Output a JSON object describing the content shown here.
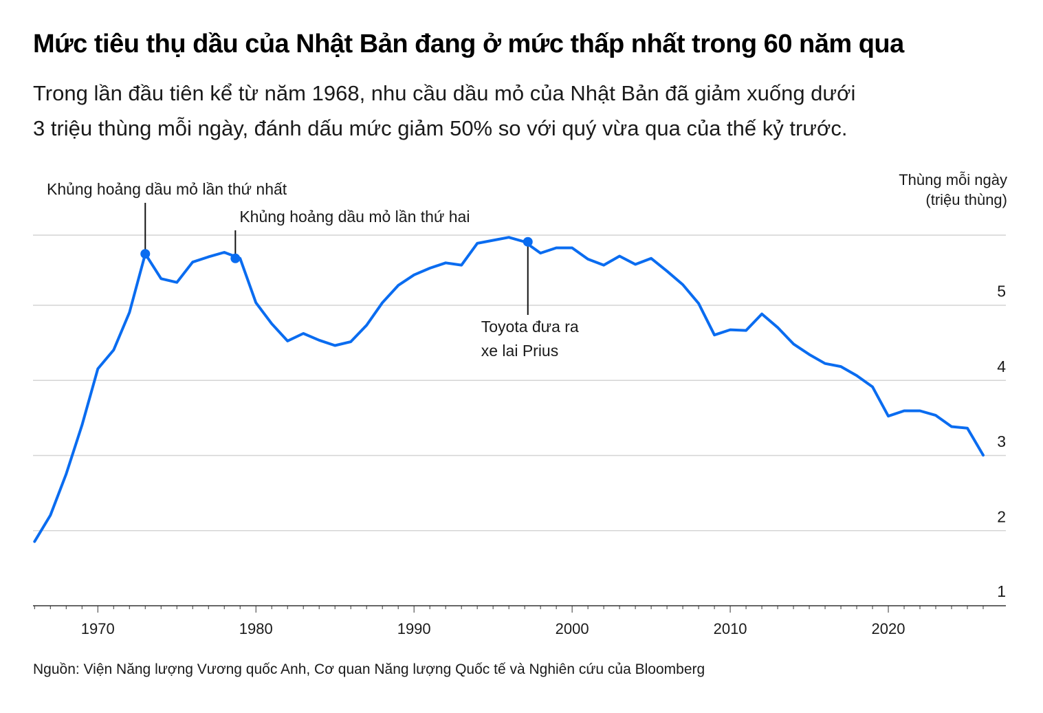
{
  "header": {
    "title": "Mức tiêu thụ dầu của Nhật Bản đang ở mức thấp nhất trong 60 năm qua",
    "subtitle_lines": [
      "Trong lần đầu tiên kể từ năm 1968, nhu cầu dầu mỏ của Nhật Bản đã giảm xuống dưới",
      "3 triệu thùng mỗi ngày, đánh dấu mức giảm 50% so với quý vừa qua của thế kỷ trước."
    ]
  },
  "source": "Nguồn: Viện Năng lượng Vương quốc Anh, Cơ quan Năng lượng Quốc tế và Nghiên cứu của Bloomberg",
  "colors": {
    "line": "#0a6cf0",
    "grid": "#d4d4d4",
    "axis": "#333333",
    "text": "#1a1a1a"
  },
  "chart_data": {
    "type": "line",
    "title": "Mức tiêu thụ dầu của Nhật Bản đang ở mức thấp nhất trong 60 năm qua",
    "ylabel_lines": [
      "Thùng mỗi ngày",
      "(triệu thùng)"
    ],
    "xlabel": "",
    "y_ticks": [
      1,
      2,
      3,
      4,
      5
    ],
    "x_ticks": [
      1970,
      1980,
      1990,
      2000,
      2010,
      2020
    ],
    "xlim": [
      1965.9,
      2027.5
    ],
    "ylim": [
      1,
      5.95
    ],
    "grid": true,
    "y_axis_position": "right",
    "series": [
      {
        "name": "",
        "x": [
          1966,
          1967,
          1968,
          1969,
          1970,
          1971,
          1972,
          1973,
          1974,
          1975,
          1976,
          1977,
          1978,
          1979,
          1980,
          1981,
          1982,
          1983,
          1984,
          1985,
          1986,
          1987,
          1988,
          1989,
          1990,
          1991,
          1992,
          1993,
          1994,
          1995,
          1996,
          1997,
          1998,
          1999,
          2000,
          2001,
          2002,
          2003,
          2004,
          2005,
          2006,
          2007,
          2008,
          2009,
          2010,
          2011,
          2012,
          2013,
          2014,
          2015,
          2016,
          2017,
          2018,
          2019,
          2020,
          2021,
          2022,
          2023,
          2024,
          2025,
          2026
        ],
        "values": [
          1.85,
          2.2,
          2.75,
          3.4,
          4.15,
          4.4,
          4.9,
          5.68,
          5.35,
          5.3,
          5.57,
          5.64,
          5.7,
          5.62,
          5.03,
          4.75,
          4.52,
          4.62,
          4.53,
          4.46,
          4.51,
          4.73,
          5.03,
          5.26,
          5.4,
          5.49,
          5.56,
          5.53,
          5.82,
          5.86,
          5.9,
          5.84,
          5.69,
          5.76,
          5.76,
          5.61,
          5.53,
          5.65,
          5.54,
          5.62,
          5.45,
          5.27,
          5.02,
          4.6,
          4.67,
          4.66,
          4.88,
          4.7,
          4.48,
          4.34,
          4.22,
          4.18,
          4.06,
          3.91,
          3.52,
          3.59,
          3.59,
          3.53,
          3.38,
          3.36,
          3.0
        ]
      }
    ],
    "annotations": [
      {
        "x": 1973,
        "y": 5.68,
        "lines": [
          "Khủng hoảng dầu mỏ lần thứ nhất"
        ],
        "position": "above"
      },
      {
        "x": 1978.7,
        "y": 5.62,
        "lines": [
          "Khủng hoảng dầu mỏ lần thứ hai"
        ],
        "position": "above"
      },
      {
        "x": 1997.2,
        "y": 5.84,
        "lines": [
          "Toyota đưa ra",
          "xe lai Prius"
        ],
        "position": "below"
      }
    ]
  }
}
